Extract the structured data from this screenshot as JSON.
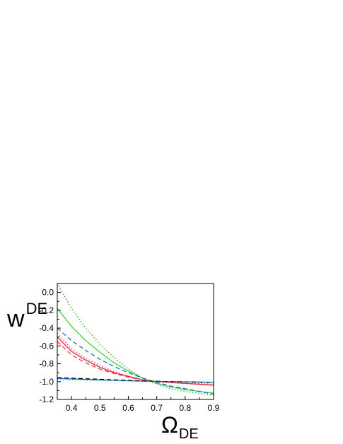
{
  "chart_data": {
    "type": "line",
    "title": "",
    "xlabel": {
      "main": "Ω",
      "sub": "DE"
    },
    "ylabel": {
      "main": "w",
      "sub": "DE"
    },
    "xlim": [
      0.35,
      0.9
    ],
    "ylim": [
      -1.2,
      0.1
    ],
    "xticks": [
      "0.4",
      "0.5",
      "0.6",
      "0.7",
      "0.8",
      "0.9"
    ],
    "yticks": [
      "0.0",
      "-0.2",
      "-0.4",
      "-0.6",
      "-0.8",
      "-1.0",
      "-1.2"
    ],
    "grid": false,
    "legend": "none",
    "series": [
      {
        "color": "#2e9e2e",
        "dash": "dot",
        "x": [
          0.35,
          0.4,
          0.45,
          0.5,
          0.55,
          0.6,
          0.65,
          0.7,
          0.75,
          0.8,
          0.85,
          0.9
        ],
        "y": [
          0.1,
          -0.18,
          -0.4,
          -0.58,
          -0.73,
          -0.86,
          -0.96,
          -1.03,
          -1.08,
          -1.11,
          -1.13,
          -1.15
        ]
      },
      {
        "color": "#33dd33",
        "dash": "solid",
        "x": [
          0.35,
          0.4,
          0.45,
          0.5,
          0.55,
          0.6,
          0.65,
          0.7,
          0.75,
          0.8,
          0.85,
          0.9
        ],
        "y": [
          -0.18,
          -0.38,
          -0.54,
          -0.67,
          -0.79,
          -0.88,
          -0.96,
          -1.02,
          -1.06,
          -1.09,
          -1.11,
          -1.13
        ]
      },
      {
        "color": "#2266cc",
        "dash": "dash",
        "x": [
          0.35,
          0.4,
          0.45,
          0.5,
          0.55,
          0.6,
          0.65,
          0.7,
          0.75,
          0.8,
          0.85,
          0.9
        ],
        "y": [
          -0.4,
          -0.54,
          -0.65,
          -0.75,
          -0.83,
          -0.9,
          -0.96,
          -1.01,
          -1.05,
          -1.08,
          -1.11,
          -1.14
        ]
      },
      {
        "color": "#dd2255",
        "dash": "solid",
        "x": [
          0.35,
          0.4,
          0.45,
          0.5,
          0.55,
          0.6,
          0.65,
          0.7,
          0.75,
          0.8,
          0.85,
          0.9
        ],
        "y": [
          -0.5,
          -0.66,
          -0.76,
          -0.84,
          -0.9,
          -0.94,
          -0.98,
          -1.0,
          -1.01,
          -1.02,
          -1.03,
          -1.04
        ]
      },
      {
        "color": "#ff3333",
        "dash": "dot",
        "x": [
          0.35,
          0.4,
          0.45,
          0.5,
          0.55,
          0.6,
          0.65,
          0.7,
          0.75,
          0.8,
          0.85,
          0.9
        ],
        "y": [
          -0.46,
          -0.63,
          -0.74,
          -0.82,
          -0.89,
          -0.94,
          -0.98,
          -1.0,
          -1.01,
          -1.02,
          -1.02,
          -1.03
        ]
      },
      {
        "color": "#ff3333",
        "dash": "dash",
        "x": [
          0.35,
          0.4,
          0.45,
          0.5,
          0.55,
          0.6,
          0.65,
          0.7,
          0.75,
          0.8,
          0.85,
          0.9
        ],
        "y": [
          -0.55,
          -0.7,
          -0.79,
          -0.86,
          -0.91,
          -0.95,
          -0.98,
          -1.0,
          -1.01,
          -1.02,
          -1.03,
          -1.04
        ]
      },
      {
        "color": "#2266cc",
        "dash": "solid",
        "x": [
          0.35,
          0.45,
          0.55,
          0.65,
          0.75,
          0.85,
          0.9
        ],
        "y": [
          -0.965,
          -0.975,
          -0.985,
          -0.995,
          -1.0,
          -1.005,
          -1.008
        ]
      },
      {
        "color": "#000000",
        "dash": "dash",
        "x": [
          0.35,
          0.45,
          0.55,
          0.65,
          0.75,
          0.85,
          0.9
        ],
        "y": [
          -0.955,
          -0.968,
          -0.98,
          -0.992,
          -1.0,
          -1.006,
          -1.01
        ]
      },
      {
        "color": "#22bbbb",
        "dash": "dot",
        "x": [
          0.35,
          0.45,
          0.55,
          0.65,
          0.75,
          0.85,
          0.9
        ],
        "y": [
          -0.975,
          -0.983,
          -0.99,
          -0.997,
          -1.002,
          -1.004,
          -1.006
        ]
      }
    ]
  }
}
